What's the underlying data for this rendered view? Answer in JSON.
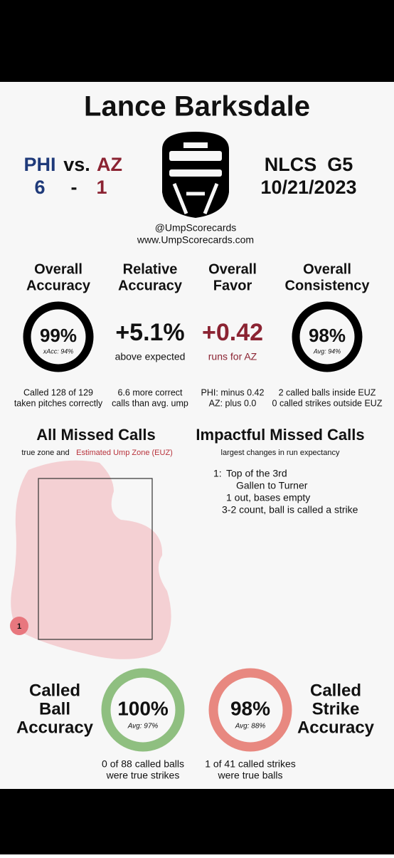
{
  "header": {
    "name": "Lance Barksdale",
    "away_team": "PHI",
    "vs": "vs.",
    "home_team": "AZ",
    "away_score": "6",
    "dash": "-",
    "home_score": "1",
    "series": "NLCS  G5",
    "date": "10/21/2023",
    "handle": "@UmpScorecards",
    "website": "www.UmpScorecards.com"
  },
  "metrics": [
    {
      "title": [
        "Overall",
        "Accuracy"
      ],
      "value": "99%",
      "sub": "xAcc: 94%",
      "note": [
        "Called 128 of 129",
        "taken pitches correctly"
      ]
    },
    {
      "title": [
        "Relative",
        "Accuracy"
      ],
      "value": "+5.1%",
      "sub": "above expected",
      "note": [
        "6.6 more correct",
        "calls than avg. ump"
      ]
    },
    {
      "title": [
        "Overall",
        "Favor"
      ],
      "value": "+0.42",
      "sub": "runs for AZ",
      "note": [
        "PHI: minus 0.42",
        "AZ: plus 0.0"
      ]
    },
    {
      "title": [
        "Overall",
        "Consistency"
      ],
      "value": "98%",
      "sub": "Avg: 94%",
      "note": [
        "2 called balls inside EUZ",
        "0 called strikes outside EUZ"
      ]
    }
  ],
  "missed": {
    "title": "All Missed Calls",
    "sub_a": "true zone and",
    "sub_b": "Estimated Ump Zone (EUZ)",
    "marker": "1"
  },
  "impactful": {
    "title": "Impactful Missed Calls",
    "sub": "largest changes in run expectancy",
    "items": [
      {
        "num": "1:",
        "lines": [
          "Top of the 3rd",
          "Gallen to Turner",
          "1 out, bases empty",
          "3-2 count, ball is called a strike"
        ]
      }
    ]
  },
  "ball": {
    "title": [
      "Called",
      "Ball",
      "Accuracy"
    ],
    "value": "100%",
    "avg": "Avg: 97%",
    "note": [
      "0 of 88 called balls",
      "were true strikes"
    ]
  },
  "strike": {
    "title": [
      "Called",
      "Strike",
      "Accuracy"
    ],
    "value": "98%",
    "avg": "Avg: 88%",
    "note": [
      "1 of 41 called strikes",
      "were true balls"
    ]
  }
}
